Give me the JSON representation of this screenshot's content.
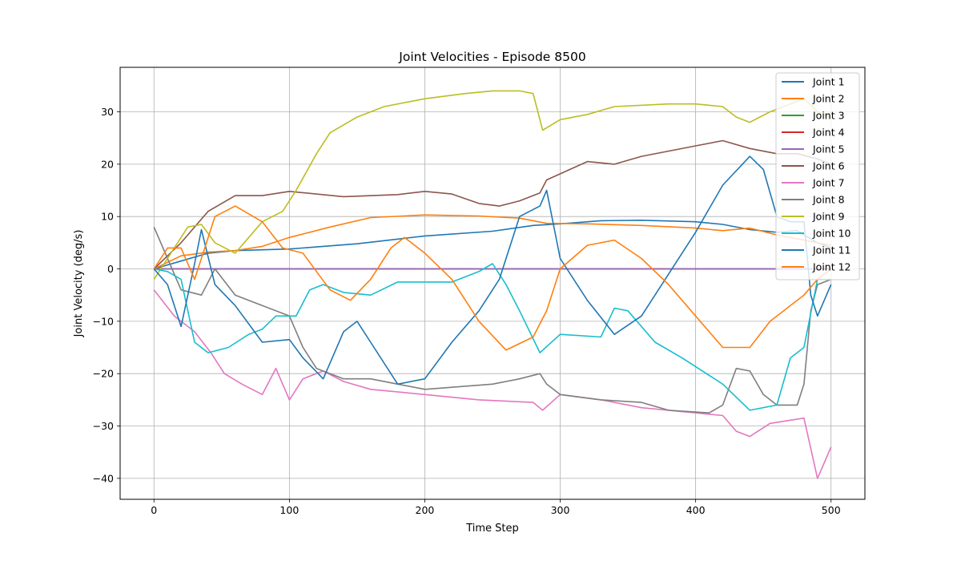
{
  "chart_data": {
    "type": "line",
    "title": "Joint Velocities - Episode 8500",
    "xlabel": "Time Step",
    "ylabel": "Joint Velocity (deg/s)",
    "xlim": [
      -25,
      525
    ],
    "ylim": [
      -44,
      38.5
    ],
    "xticks": [
      0,
      100,
      200,
      300,
      400,
      500
    ],
    "yticks": [
      -40,
      -30,
      -20,
      -10,
      0,
      10,
      20,
      30
    ],
    "grid": true,
    "legend_position": "top-right",
    "series": [
      {
        "name": "Joint 1",
        "color": "#1f77b4",
        "points": [
          [
            0,
            0
          ],
          [
            20,
            1.5
          ],
          [
            40,
            3
          ],
          [
            60,
            3.5
          ],
          [
            100,
            3.8
          ],
          [
            150,
            4.8
          ],
          [
            200,
            6.3
          ],
          [
            250,
            7.2
          ],
          [
            280,
            8.3
          ],
          [
            300,
            8.6
          ],
          [
            330,
            9.2
          ],
          [
            360,
            9.3
          ],
          [
            400,
            9
          ],
          [
            420,
            8.5
          ],
          [
            440,
            7.5
          ],
          [
            460,
            7
          ],
          [
            475,
            7.3
          ],
          [
            490,
            5
          ],
          [
            500,
            4
          ]
        ]
      },
      {
        "name": "Joint 2",
        "color": "#ff7f0e",
        "points": [
          [
            0,
            0
          ],
          [
            20,
            2.5
          ],
          [
            40,
            3.2
          ],
          [
            60,
            3.5
          ],
          [
            80,
            4.3
          ],
          [
            100,
            6
          ],
          [
            130,
            8
          ],
          [
            160,
            9.8
          ],
          [
            200,
            10.3
          ],
          [
            240,
            10.1
          ],
          [
            270,
            9.7
          ],
          [
            290,
            8.7
          ],
          [
            320,
            8.6
          ],
          [
            360,
            8.3
          ],
          [
            400,
            7.8
          ],
          [
            420,
            7.3
          ],
          [
            440,
            7.8
          ],
          [
            460,
            6.5
          ],
          [
            480,
            5.5
          ],
          [
            500,
            4.5
          ]
        ]
      },
      {
        "name": "Joint 3",
        "color": "#2ca02c",
        "points": [
          [
            0,
            0
          ],
          [
            500,
            0
          ]
        ]
      },
      {
        "name": "Joint 4",
        "color": "#d62728",
        "points": [
          [
            0,
            0
          ],
          [
            500,
            0
          ]
        ]
      },
      {
        "name": "Joint 5",
        "color": "#9467bd",
        "points": [
          [
            0,
            0
          ],
          [
            500,
            0
          ]
        ]
      },
      {
        "name": "Joint 6",
        "color": "#8c564b",
        "points": [
          [
            0,
            0
          ],
          [
            20,
            5
          ],
          [
            40,
            11
          ],
          [
            60,
            14
          ],
          [
            80,
            14
          ],
          [
            100,
            14.8
          ],
          [
            140,
            13.8
          ],
          [
            180,
            14.2
          ],
          [
            200,
            14.8
          ],
          [
            220,
            14.3
          ],
          [
            240,
            12.5
          ],
          [
            255,
            12
          ],
          [
            270,
            13
          ],
          [
            285,
            14.5
          ],
          [
            290,
            17
          ],
          [
            320,
            20.5
          ],
          [
            340,
            20
          ],
          [
            360,
            21.5
          ],
          [
            400,
            23.5
          ],
          [
            420,
            24.5
          ],
          [
            440,
            23
          ],
          [
            460,
            22
          ],
          [
            475,
            22
          ],
          [
            490,
            21
          ],
          [
            500,
            20
          ]
        ]
      },
      {
        "name": "Joint 7",
        "color": "#e377c2",
        "points": [
          [
            0,
            -4
          ],
          [
            15,
            -9
          ],
          [
            30,
            -12
          ],
          [
            42,
            -16
          ],
          [
            52,
            -20
          ],
          [
            65,
            -22
          ],
          [
            80,
            -24
          ],
          [
            90,
            -19
          ],
          [
            100,
            -25
          ],
          [
            110,
            -21
          ],
          [
            125,
            -19.5
          ],
          [
            140,
            -21.5
          ],
          [
            160,
            -23
          ],
          [
            200,
            -24
          ],
          [
            240,
            -25
          ],
          [
            280,
            -25.5
          ],
          [
            287,
            -27
          ],
          [
            300,
            -24
          ],
          [
            330,
            -25
          ],
          [
            360,
            -26.5
          ],
          [
            400,
            -27.5
          ],
          [
            420,
            -28
          ],
          [
            430,
            -31
          ],
          [
            440,
            -32
          ],
          [
            455,
            -29.5
          ],
          [
            480,
            -28.5
          ],
          [
            490,
            -40
          ],
          [
            495,
            -37
          ],
          [
            500,
            -34
          ]
        ]
      },
      {
        "name": "Joint 8",
        "color": "#7f7f7f",
        "points": [
          [
            0,
            8
          ],
          [
            10,
            2
          ],
          [
            20,
            -4
          ],
          [
            35,
            -5
          ],
          [
            45,
            0
          ],
          [
            60,
            -5
          ],
          [
            80,
            -7
          ],
          [
            100,
            -9
          ],
          [
            110,
            -15
          ],
          [
            120,
            -19
          ],
          [
            140,
            -21
          ],
          [
            160,
            -21
          ],
          [
            180,
            -22
          ],
          [
            200,
            -23
          ],
          [
            250,
            -22
          ],
          [
            270,
            -21
          ],
          [
            285,
            -20
          ],
          [
            290,
            -22
          ],
          [
            300,
            -24
          ],
          [
            330,
            -25
          ],
          [
            360,
            -25.5
          ],
          [
            380,
            -27
          ],
          [
            410,
            -27.5
          ],
          [
            420,
            -26
          ],
          [
            430,
            -19
          ],
          [
            440,
            -19.5
          ],
          [
            450,
            -24
          ],
          [
            460,
            -26
          ],
          [
            475,
            -26
          ],
          [
            480,
            -22
          ],
          [
            485,
            -8
          ],
          [
            490,
            -3
          ],
          [
            500,
            -2
          ]
        ]
      },
      {
        "name": "Joint 9",
        "color": "#bcbd22",
        "points": [
          [
            0,
            -2
          ],
          [
            15,
            4
          ],
          [
            25,
            8
          ],
          [
            35,
            8.5
          ],
          [
            45,
            5
          ],
          [
            60,
            3
          ],
          [
            70,
            6
          ],
          [
            80,
            9
          ],
          [
            95,
            11
          ],
          [
            105,
            15
          ],
          [
            120,
            22
          ],
          [
            130,
            26
          ],
          [
            150,
            29
          ],
          [
            170,
            31
          ],
          [
            200,
            32.5
          ],
          [
            230,
            33.5
          ],
          [
            250,
            34
          ],
          [
            270,
            34
          ],
          [
            280,
            33.5
          ],
          [
            287,
            26.5
          ],
          [
            300,
            28.5
          ],
          [
            320,
            29.5
          ],
          [
            340,
            31
          ],
          [
            380,
            31.5
          ],
          [
            400,
            31.5
          ],
          [
            420,
            31
          ],
          [
            430,
            29
          ],
          [
            440,
            28
          ],
          [
            455,
            30
          ],
          [
            470,
            31.5
          ],
          [
            480,
            32.5
          ],
          [
            490,
            30
          ],
          [
            500,
            29
          ]
        ]
      },
      {
        "name": "Joint 10",
        "color": "#17becf",
        "points": [
          [
            0,
            0
          ],
          [
            10,
            -0.5
          ],
          [
            20,
            -2
          ],
          [
            30,
            -14
          ],
          [
            40,
            -16
          ],
          [
            55,
            -15
          ],
          [
            70,
            -12.5
          ],
          [
            80,
            -11.5
          ],
          [
            90,
            -9
          ],
          [
            105,
            -9
          ],
          [
            115,
            -4
          ],
          [
            125,
            -3
          ],
          [
            140,
            -4.5
          ],
          [
            160,
            -5
          ],
          [
            180,
            -2.5
          ],
          [
            200,
            -2.5
          ],
          [
            220,
            -2.5
          ],
          [
            240,
            -0.5
          ],
          [
            250,
            1
          ],
          [
            260,
            -3
          ],
          [
            270,
            -8
          ],
          [
            285,
            -16
          ],
          [
            300,
            -12.5
          ],
          [
            330,
            -13
          ],
          [
            340,
            -7.5
          ],
          [
            350,
            -8
          ],
          [
            370,
            -14
          ],
          [
            390,
            -17
          ],
          [
            420,
            -22
          ],
          [
            440,
            -27
          ],
          [
            460,
            -26
          ],
          [
            470,
            -17
          ],
          [
            480,
            -15
          ],
          [
            490,
            -2
          ],
          [
            500,
            -2
          ]
        ]
      },
      {
        "name": "Joint 11",
        "color": "#1f77b4",
        "points": [
          [
            0,
            0
          ],
          [
            10,
            -3
          ],
          [
            20,
            -11
          ],
          [
            30,
            1
          ],
          [
            35,
            7.5
          ],
          [
            45,
            -3
          ],
          [
            60,
            -7
          ],
          [
            80,
            -14
          ],
          [
            100,
            -13.5
          ],
          [
            110,
            -17
          ],
          [
            125,
            -21
          ],
          [
            140,
            -12
          ],
          [
            150,
            -10
          ],
          [
            160,
            -14
          ],
          [
            180,
            -22
          ],
          [
            200,
            -21
          ],
          [
            220,
            -14
          ],
          [
            240,
            -8
          ],
          [
            255,
            -2
          ],
          [
            270,
            10
          ],
          [
            285,
            12
          ],
          [
            290,
            15
          ],
          [
            300,
            2
          ],
          [
            320,
            -6
          ],
          [
            340,
            -12.5
          ],
          [
            360,
            -9
          ],
          [
            380,
            -1
          ],
          [
            400,
            7
          ],
          [
            420,
            16
          ],
          [
            440,
            21.5
          ],
          [
            450,
            19
          ],
          [
            460,
            10
          ],
          [
            470,
            9
          ],
          [
            480,
            9
          ],
          [
            485,
            -5
          ],
          [
            490,
            -9
          ],
          [
            500,
            -3
          ]
        ]
      },
      {
        "name": "Joint 12",
        "color": "#ff7f0e",
        "points": [
          [
            0,
            0
          ],
          [
            10,
            4
          ],
          [
            20,
            4
          ],
          [
            30,
            -2
          ],
          [
            45,
            10
          ],
          [
            60,
            12
          ],
          [
            80,
            9
          ],
          [
            95,
            4
          ],
          [
            110,
            3
          ],
          [
            130,
            -4
          ],
          [
            145,
            -6
          ],
          [
            160,
            -2
          ],
          [
            175,
            4
          ],
          [
            185,
            6
          ],
          [
            200,
            3
          ],
          [
            220,
            -2
          ],
          [
            240,
            -10
          ],
          [
            260,
            -15.5
          ],
          [
            280,
            -13
          ],
          [
            290,
            -8
          ],
          [
            300,
            0
          ],
          [
            320,
            4.5
          ],
          [
            340,
            5.5
          ],
          [
            360,
            2
          ],
          [
            380,
            -3
          ],
          [
            400,
            -9
          ],
          [
            420,
            -15
          ],
          [
            440,
            -15
          ],
          [
            455,
            -10
          ],
          [
            470,
            -7
          ],
          [
            480,
            -5
          ],
          [
            490,
            -2
          ],
          [
            500,
            0
          ]
        ]
      }
    ]
  }
}
